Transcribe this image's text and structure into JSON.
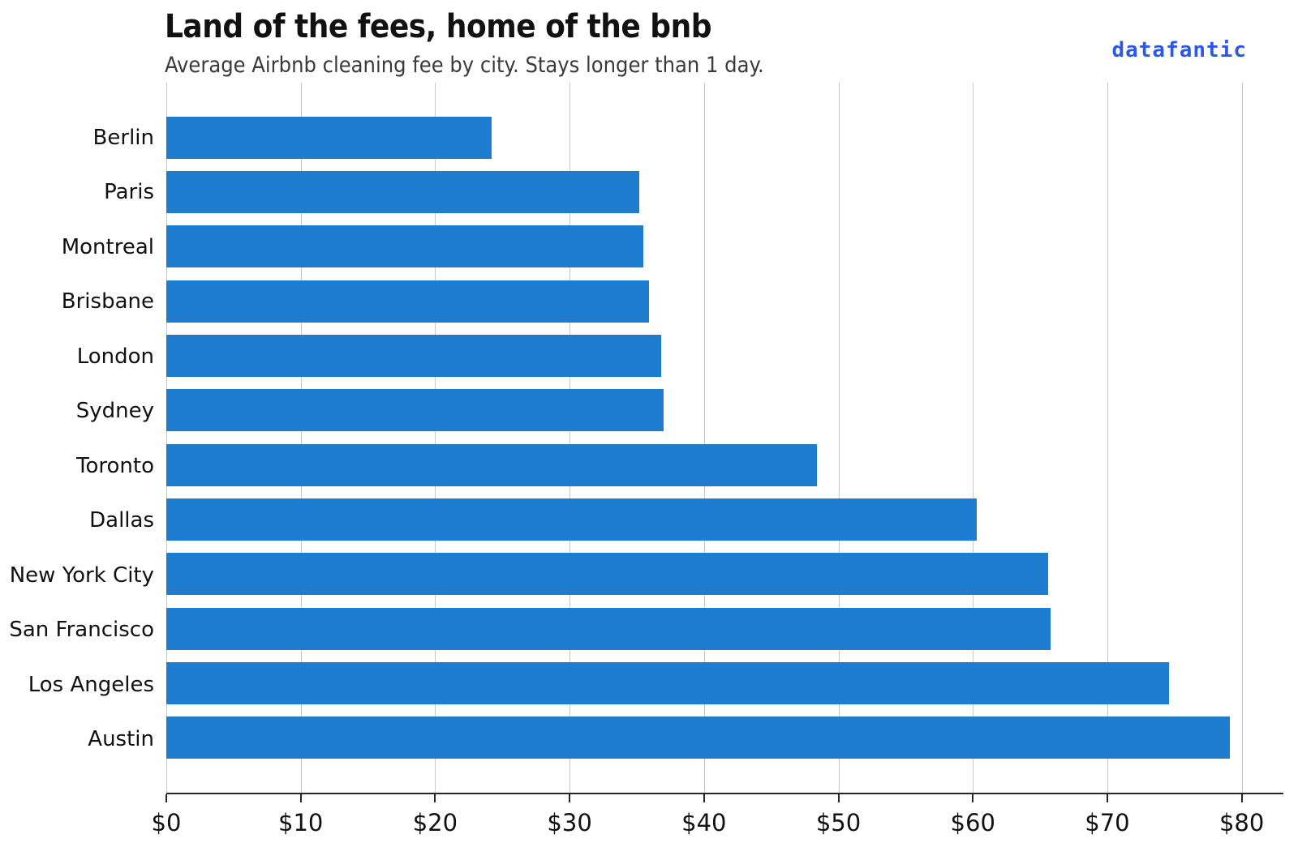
{
  "header": {
    "title": "Land of the fees, home of the bnb",
    "subtitle": "Average Airbnb cleaning fee by city. Stays longer than 1 day.",
    "brand": "datafantic"
  },
  "colors": {
    "bar": "#1f7dd0",
    "brand": "#2b59e6",
    "gridline": "#c9c9c9",
    "axis": "#262626",
    "title_text": "#111111",
    "subtitle_text": "#3a3a3a"
  },
  "chart_data": {
    "type": "bar",
    "orientation": "horizontal",
    "title": "Land of the fees, home of the bnb",
    "subtitle": "Average Airbnb cleaning fee by city. Stays longer than 1 day.",
    "categories": [
      "Berlin",
      "Paris",
      "Montreal",
      "Brisbane",
      "London",
      "Sydney",
      "Toronto",
      "Dallas",
      "New York City",
      "San Francisco",
      "Los Angeles",
      "Austin"
    ],
    "values": [
      24.2,
      35.2,
      35.5,
      35.9,
      36.8,
      37.0,
      48.4,
      60.3,
      65.6,
      65.8,
      74.6,
      79.1
    ],
    "unit": "USD",
    "xlabel": "",
    "ylabel": "",
    "x_tick_labels": [
      "$0",
      "$10",
      "$20",
      "$30",
      "$40",
      "$50",
      "$60",
      "$70",
      "$80"
    ],
    "x_tick_values": [
      0,
      10,
      20,
      30,
      40,
      50,
      60,
      70,
      80
    ],
    "xlim": [
      0,
      83.1
    ],
    "grid": "vertical",
    "legend": "none"
  }
}
